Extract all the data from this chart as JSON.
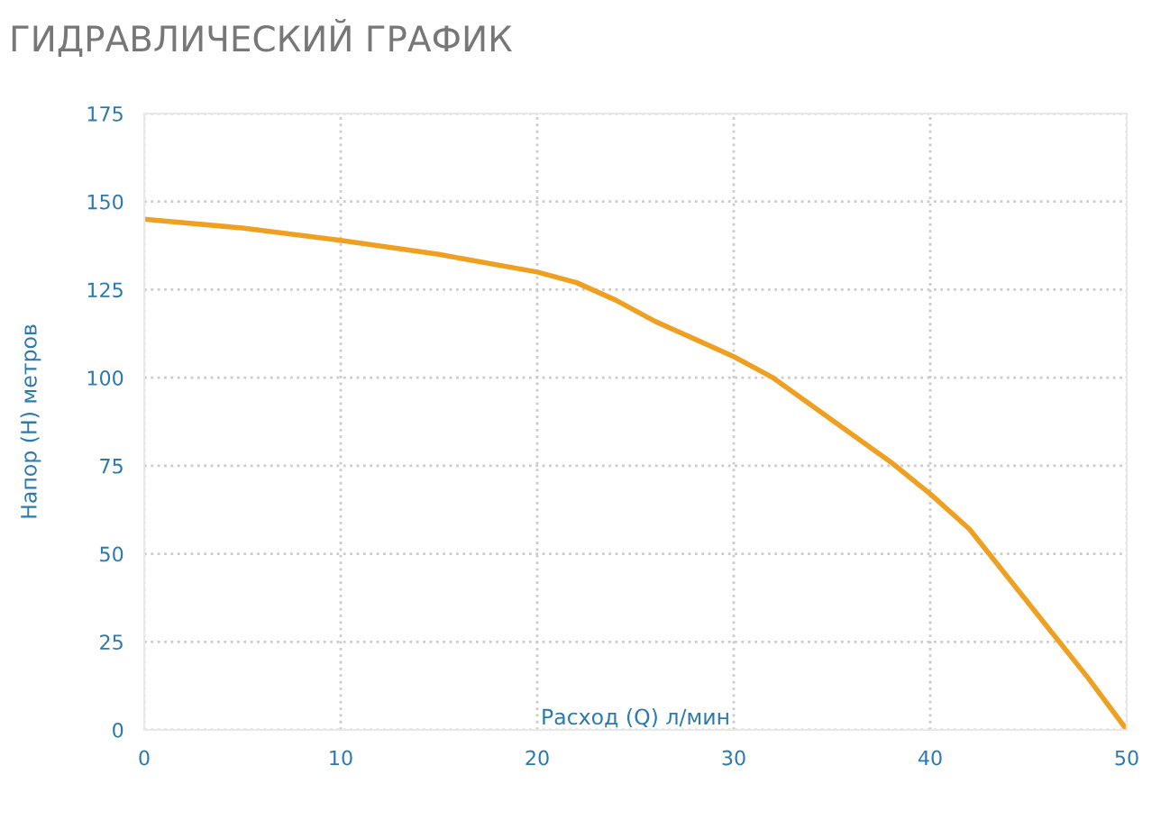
{
  "chart_data": {
    "type": "line",
    "title": "ГИДРАВЛИЧЕСКИЙ ГРАФИК",
    "xlabel": "Расход (Q) л/мин",
    "ylabel": "Напор (H) метров",
    "series": [
      {
        "color": "#f0a020",
        "x": [
          0,
          5,
          10,
          15,
          20,
          22,
          24,
          26,
          28,
          30,
          32,
          34,
          36,
          38,
          40,
          42,
          44,
          46,
          48,
          50
        ],
        "values": [
          145,
          142.5,
          139,
          135,
          130,
          127,
          122,
          116,
          111,
          106,
          100,
          92,
          84,
          76,
          67,
          57,
          43,
          29,
          15,
          0
        ]
      }
    ],
    "xlim": [
      0,
      50
    ],
    "ylim": [
      0,
      175
    ],
    "xticks": [
      0,
      10,
      20,
      30,
      40,
      50
    ],
    "yticks": [
      0,
      25,
      50,
      75,
      100,
      125,
      150,
      175
    ],
    "grid": true,
    "marker": "none",
    "line_style": "solid"
  }
}
